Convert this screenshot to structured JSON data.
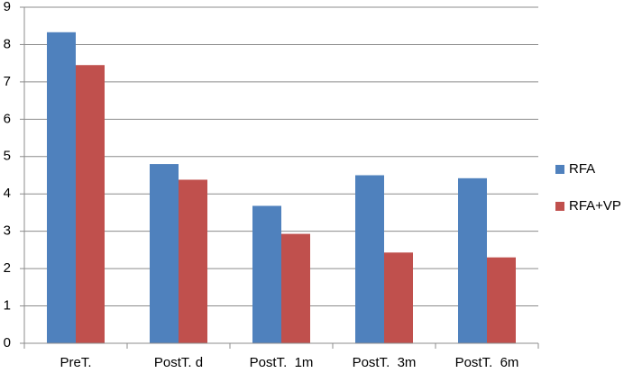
{
  "chart_data": {
    "type": "bar",
    "categories": [
      "PreT.",
      "PostT. d",
      "PostT.  1m",
      "PostT.  3m",
      "PostT.  6m"
    ],
    "series": [
      {
        "name": "RFA",
        "color": "#4f81bd",
        "values": [
          8.33,
          4.8,
          3.68,
          4.5,
          4.42
        ]
      },
      {
        "name": "RFA+VP",
        "color": "#c0504d",
        "values": [
          7.45,
          4.38,
          2.93,
          2.43,
          2.3
        ]
      }
    ],
    "ylim": [
      0,
      9
    ],
    "yticks": [
      0,
      1,
      2,
      3,
      4,
      5,
      6,
      7,
      8,
      9
    ],
    "grid": true,
    "legend": "right"
  }
}
